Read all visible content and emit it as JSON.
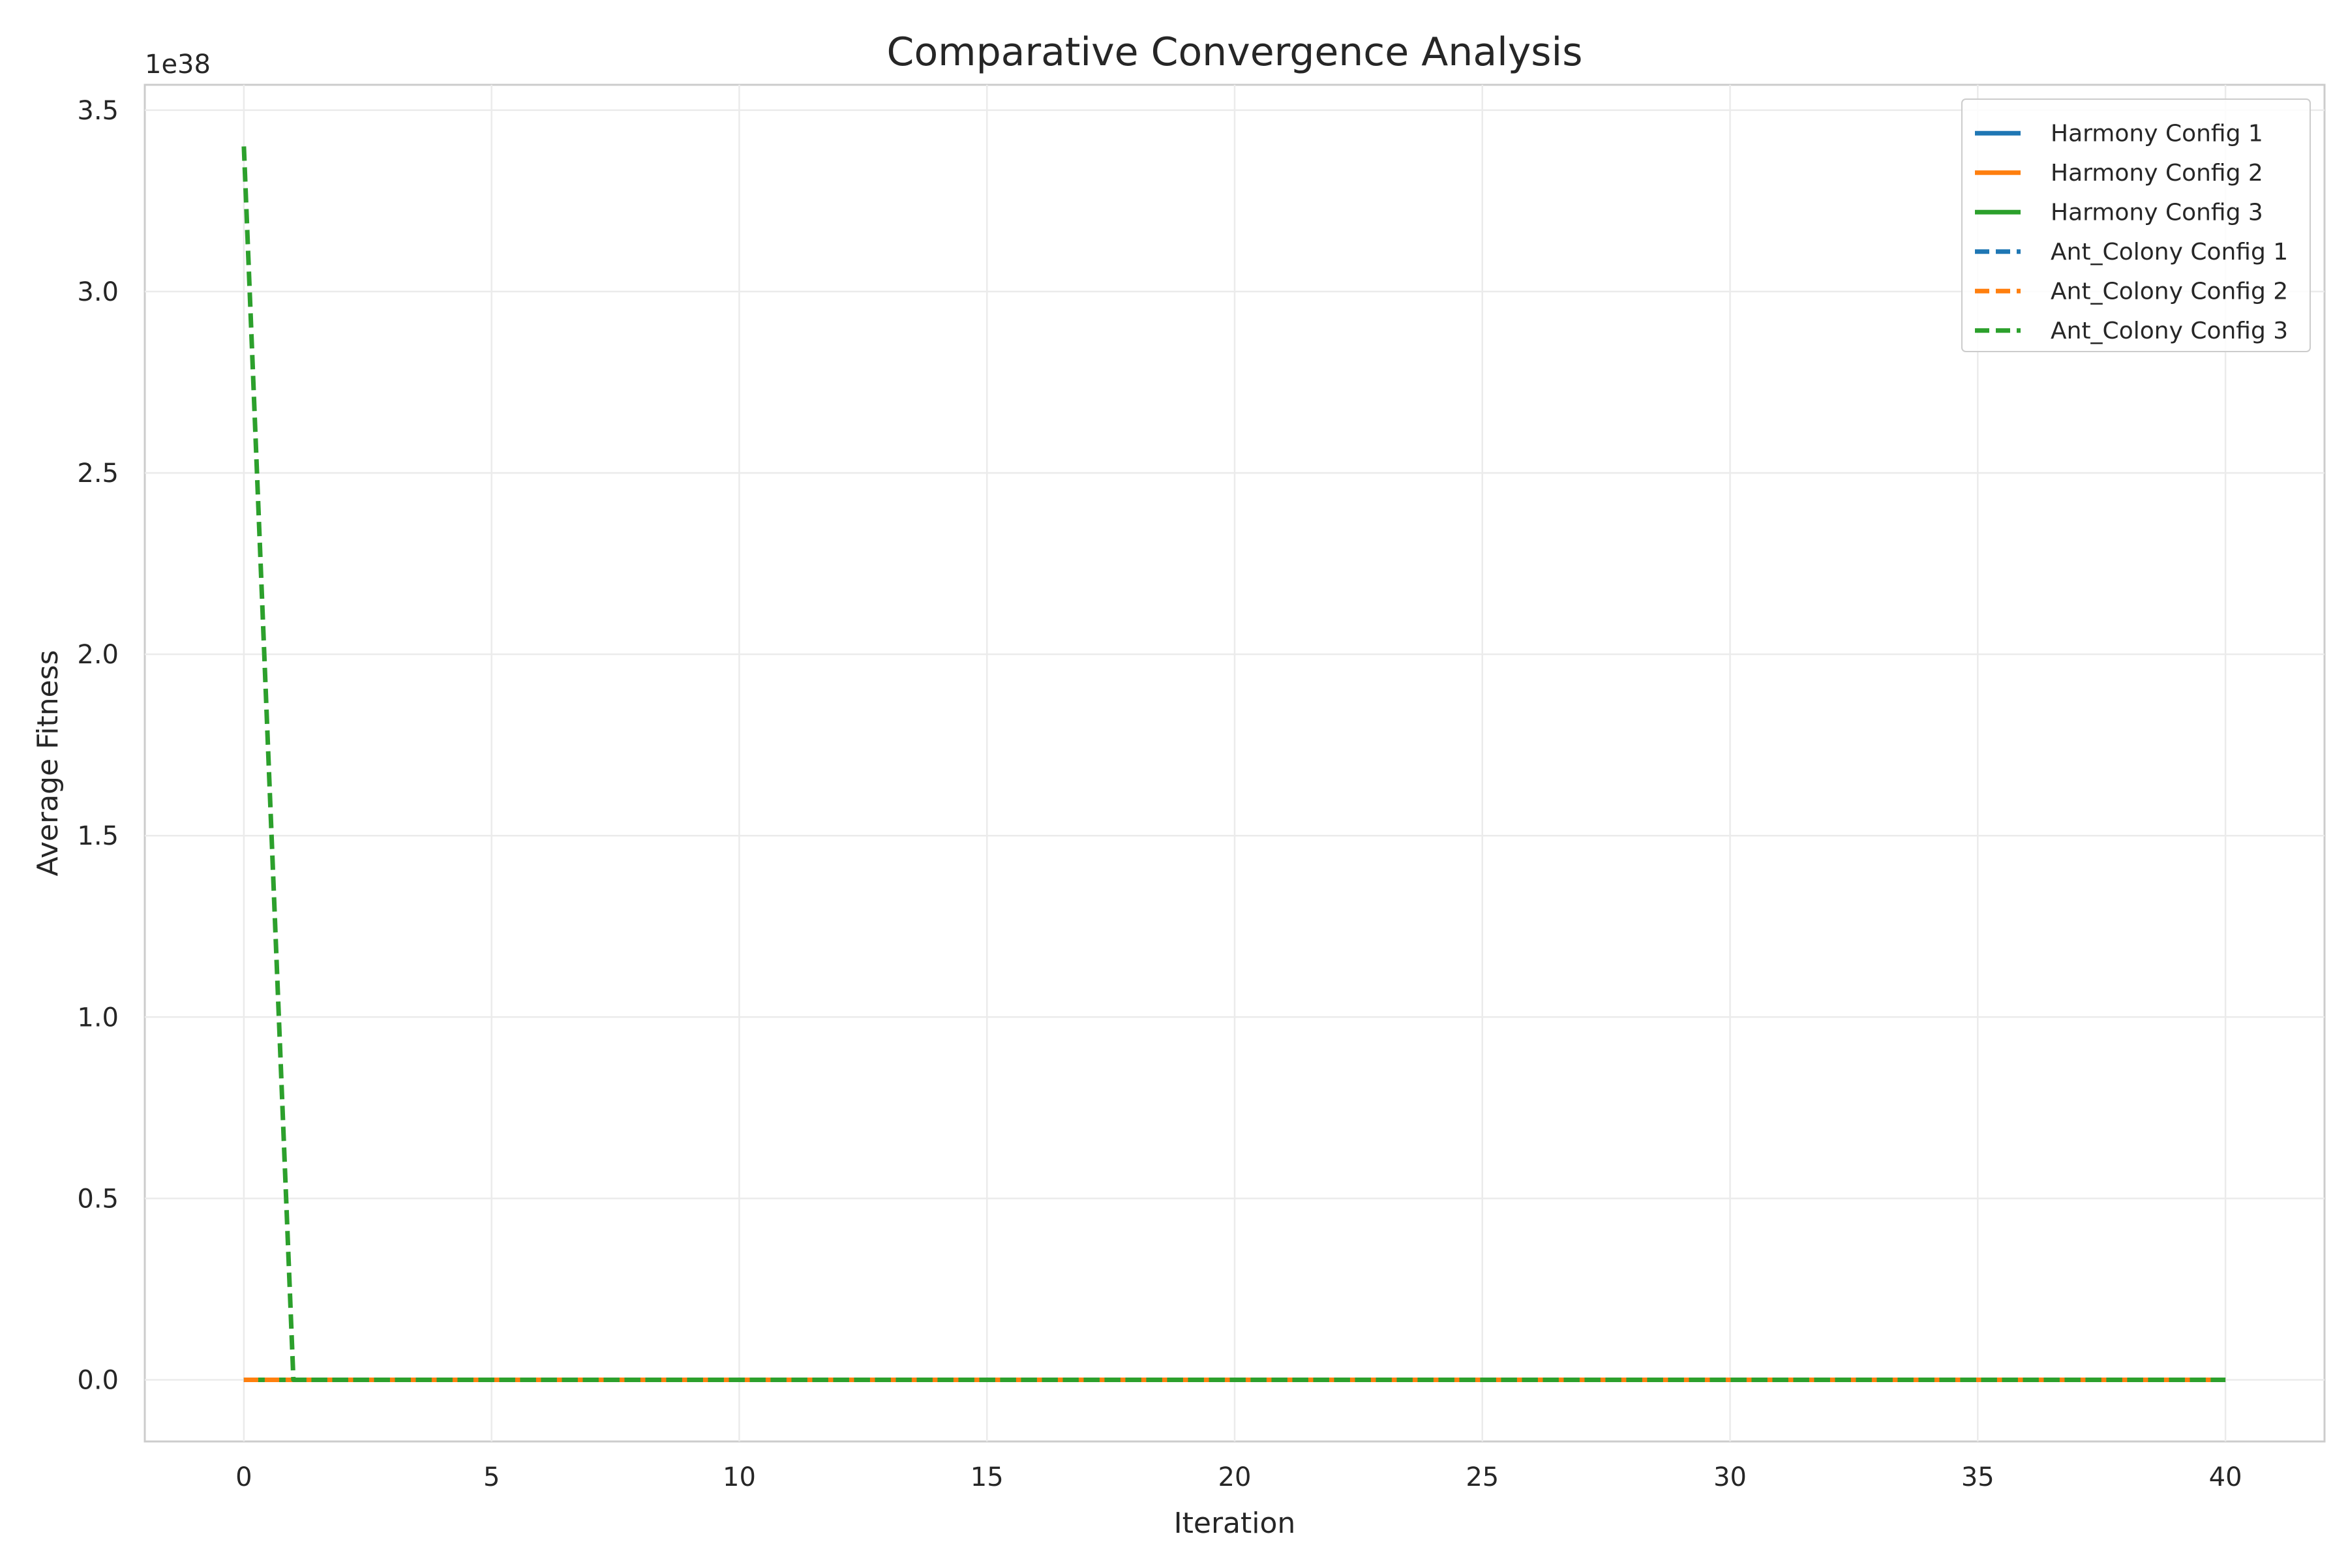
{
  "chart_data": {
    "type": "line",
    "title": "Comparative Convergence Analysis",
    "xlabel": "Iteration",
    "ylabel": "Average Fitness",
    "y_offset_label": "1e38",
    "y_scale_exponent": 38,
    "xlim": [
      -2,
      42
    ],
    "ylim": [
      -0.17,
      3.57
    ],
    "x_ticks": [
      0,
      5,
      10,
      15,
      20,
      25,
      30,
      35,
      40
    ],
    "x_tick_labels": [
      "0",
      "5",
      "10",
      "15",
      "20",
      "25",
      "30",
      "35",
      "40"
    ],
    "y_ticks": [
      0.0,
      0.5,
      1.0,
      1.5,
      2.0,
      2.5,
      3.0,
      3.5
    ],
    "y_tick_labels": [
      "0.0",
      "0.5",
      "1.0",
      "1.5",
      "2.0",
      "2.5",
      "3.0",
      "3.5"
    ],
    "grid": true,
    "legend_position": "top-right",
    "series": [
      {
        "name": "Harmony Config 1",
        "color": "#1f77b4",
        "style": "solid",
        "x": [
          0,
          40
        ],
        "y": [
          0,
          0
        ]
      },
      {
        "name": "Harmony Config 2",
        "color": "#ff7f0e",
        "style": "solid",
        "x": [
          0,
          40
        ],
        "y": [
          0,
          0
        ]
      },
      {
        "name": "Harmony Config 3",
        "color": "#2ca02c",
        "style": "solid",
        "x": [
          0,
          40
        ],
        "y": [
          0,
          0
        ]
      },
      {
        "name": "Ant_Colony Config 1",
        "color": "#1f77b4",
        "style": "dashed",
        "x": [
          0,
          40
        ],
        "y": [
          0,
          0
        ]
      },
      {
        "name": "Ant_Colony Config 2",
        "color": "#ff7f0e",
        "style": "dashed",
        "x": [
          0,
          40
        ],
        "y": [
          0,
          0
        ]
      },
      {
        "name": "Ant_Colony Config 3",
        "color": "#2ca02c",
        "style": "dashed",
        "x": [
          0,
          1,
          40
        ],
        "y": [
          3.4,
          0,
          0
        ]
      }
    ]
  }
}
